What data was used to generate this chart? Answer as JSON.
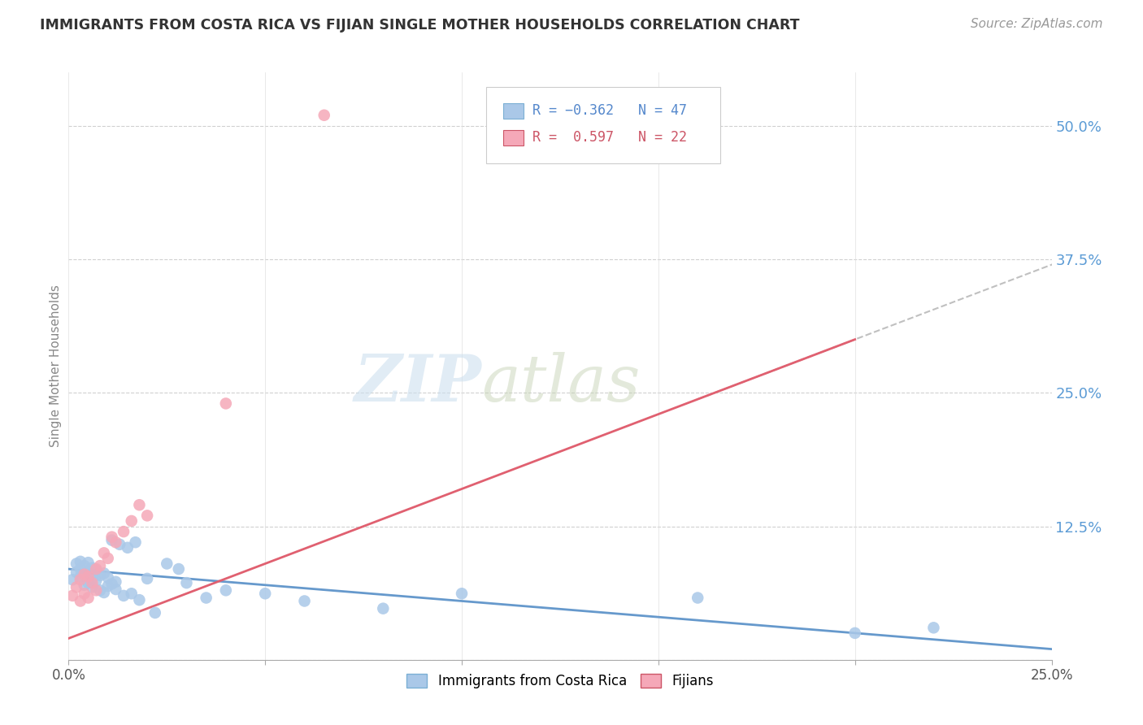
{
  "title": "IMMIGRANTS FROM COSTA RICA VS FIJIAN SINGLE MOTHER HOUSEHOLDS CORRELATION CHART",
  "source": "Source: ZipAtlas.com",
  "ylabel": "Single Mother Households",
  "xlim": [
    0.0,
    0.25
  ],
  "ylim": [
    0.0,
    0.55
  ],
  "yticks": [
    0.0,
    0.125,
    0.25,
    0.375,
    0.5
  ],
  "ytick_labels": [
    "",
    "12.5%",
    "25.0%",
    "37.5%",
    "50.0%"
  ],
  "xticks": [
    0.0,
    0.05,
    0.1,
    0.15,
    0.2,
    0.25
  ],
  "xtick_labels": [
    "0.0%",
    "",
    "",
    "",
    "",
    "25.0%"
  ],
  "color_blue": "#aac8e8",
  "color_pink": "#f5a8b8",
  "color_blue_line": "#6699cc",
  "color_pink_line": "#e06070",
  "color_dashed": "#c0c0c0",
  "cr_slope": -0.3,
  "cr_intercept": 0.085,
  "fj_slope": 1.4,
  "fj_intercept": 0.02,
  "costa_rica_x": [
    0.001,
    0.002,
    0.002,
    0.003,
    0.003,
    0.003,
    0.004,
    0.004,
    0.004,
    0.005,
    0.005,
    0.005,
    0.006,
    0.006,
    0.006,
    0.007,
    0.007,
    0.008,
    0.008,
    0.009,
    0.009,
    0.01,
    0.01,
    0.011,
    0.011,
    0.012,
    0.012,
    0.013,
    0.014,
    0.015,
    0.016,
    0.017,
    0.018,
    0.02,
    0.022,
    0.025,
    0.028,
    0.03,
    0.035,
    0.04,
    0.05,
    0.06,
    0.08,
    0.1,
    0.16,
    0.2,
    0.22
  ],
  "costa_rica_y": [
    0.075,
    0.082,
    0.09,
    0.078,
    0.085,
    0.092,
    0.07,
    0.08,
    0.088,
    0.072,
    0.083,
    0.091,
    0.068,
    0.076,
    0.086,
    0.074,
    0.084,
    0.065,
    0.079,
    0.063,
    0.081,
    0.069,
    0.077,
    0.071,
    0.112,
    0.066,
    0.073,
    0.108,
    0.06,
    0.105,
    0.062,
    0.11,
    0.056,
    0.076,
    0.044,
    0.09,
    0.085,
    0.072,
    0.058,
    0.065,
    0.062,
    0.055,
    0.048,
    0.062,
    0.058,
    0.025,
    0.03
  ],
  "fijian_x": [
    0.001,
    0.002,
    0.003,
    0.003,
    0.004,
    0.004,
    0.005,
    0.005,
    0.006,
    0.007,
    0.007,
    0.008,
    0.009,
    0.01,
    0.011,
    0.012,
    0.014,
    0.016,
    0.018,
    0.02,
    0.04,
    0.065
  ],
  "fijian_y": [
    0.06,
    0.068,
    0.055,
    0.075,
    0.062,
    0.08,
    0.058,
    0.078,
    0.072,
    0.065,
    0.085,
    0.088,
    0.1,
    0.095,
    0.115,
    0.11,
    0.12,
    0.13,
    0.145,
    0.135,
    0.24,
    0.51
  ]
}
